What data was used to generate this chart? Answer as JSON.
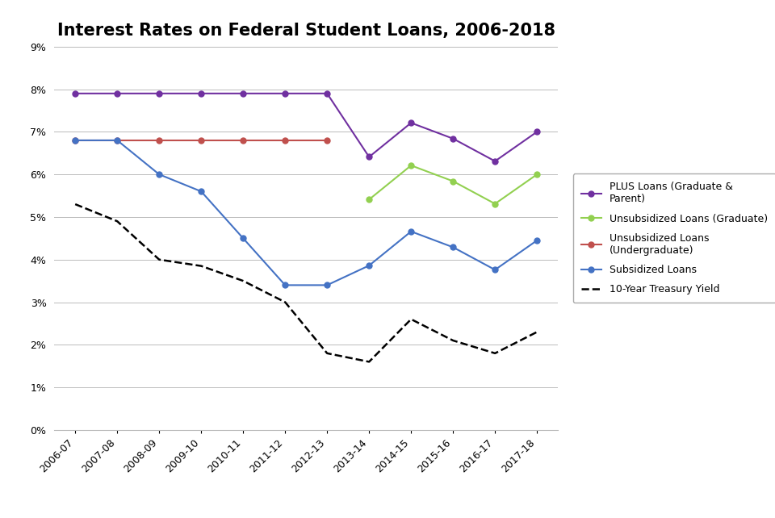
{
  "title": "Interest Rates on Federal Student Loans, 2006-2018",
  "x_labels": [
    "2006-07",
    "2007-08",
    "2008-09",
    "2009-10",
    "2010-11",
    "2011-12",
    "2012-13",
    "2013-14",
    "2014-15",
    "2015-16",
    "2016-17",
    "2017-18"
  ],
  "plus_loans": [
    7.9,
    7.9,
    7.9,
    7.9,
    7.9,
    7.9,
    7.9,
    6.41,
    7.21,
    6.84,
    6.31,
    7.0
  ],
  "unsub_grad": [
    null,
    null,
    null,
    null,
    null,
    null,
    null,
    5.41,
    6.21,
    5.84,
    5.31,
    6.0
  ],
  "unsub_undergrad": [
    6.8,
    6.8,
    6.8,
    6.8,
    6.8,
    6.8,
    6.8,
    null,
    null,
    null,
    null,
    null
  ],
  "subsidized": [
    6.8,
    6.8,
    6.0,
    5.6,
    4.5,
    3.4,
    3.4,
    3.86,
    4.66,
    4.29,
    3.76,
    4.45
  ],
  "treasury": [
    5.3,
    4.9,
    4.0,
    3.85,
    3.5,
    3.0,
    1.8,
    1.6,
    2.6,
    2.1,
    1.8,
    2.3
  ],
  "plus_color": "#7030A0",
  "unsub_grad_color": "#92D050",
  "unsub_undergrad_color": "#C0504D",
  "subsidized_color": "#4472C4",
  "treasury_color": "#000000",
  "background_color": "#FFFFFF",
  "ylim": [
    0,
    9
  ],
  "yticks": [
    0,
    1,
    2,
    3,
    4,
    5,
    6,
    7,
    8,
    9
  ],
  "title_fontsize": 15
}
